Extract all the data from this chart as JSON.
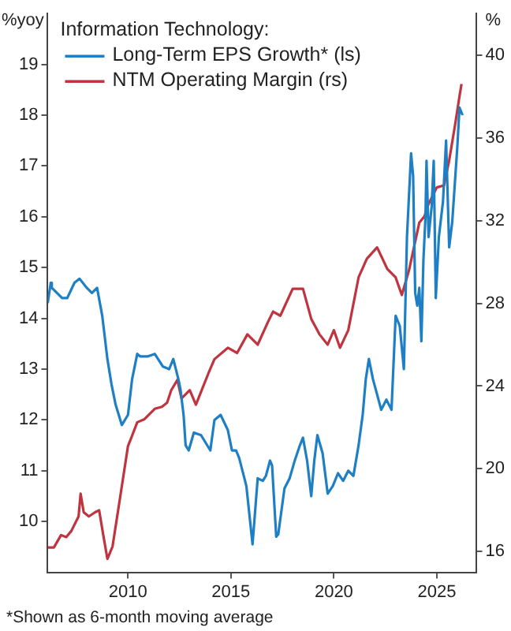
{
  "chart_data": {
    "type": "line",
    "legend_title": "Information Technology:",
    "ylabel": "%yoy",
    "y2label": "%",
    "xlim": [
      2006.1,
      2026.9
    ],
    "xticks": [
      2010,
      2015,
      2020,
      2025
    ],
    "ylim": [
      9,
      20
    ],
    "yticks": [
      10,
      11,
      12,
      13,
      14,
      15,
      16,
      17,
      18,
      19
    ],
    "y2lim": [
      15,
      42
    ],
    "y2ticks": [
      16,
      20,
      24,
      28,
      32,
      36,
      40
    ],
    "grid": false,
    "legend": "top left",
    "marker": "none",
    "line_style": "solid",
    "annotations": [
      "*Shown as 6-month moving average"
    ],
    "series": [
      {
        "name": "Long-Term EPS Growth* (ls)",
        "color": "#1f7fc4",
        "x": [
          2006.1,
          2006.25,
          2006.3,
          2006.55,
          2006.8,
          2007.05,
          2007.4,
          2007.65,
          2008.0,
          2008.25,
          2008.5,
          2008.75,
          2009.0,
          2009.2,
          2009.4,
          2009.7,
          2010.0,
          2010.2,
          2010.45,
          2010.6,
          2010.95,
          2011.3,
          2011.7,
          2012.0,
          2012.2,
          2012.45,
          2012.55,
          2012.7,
          2012.8,
          2012.95,
          2013.2,
          2013.55,
          2014.0,
          2014.2,
          2014.5,
          2014.85,
          2015.05,
          2015.25,
          2015.4,
          2015.75,
          2016.05,
          2016.3,
          2016.55,
          2016.7,
          2016.9,
          2017.0,
          2017.2,
          2017.3,
          2017.6,
          2017.85,
          2018.1,
          2018.35,
          2018.5,
          2018.7,
          2018.9,
          2019.05,
          2019.2,
          2019.45,
          2019.7,
          2019.95,
          2020.2,
          2020.45,
          2020.7,
          2020.95,
          2021.2,
          2021.4,
          2021.55,
          2021.7,
          2021.9,
          2022.1,
          2022.3,
          2022.55,
          2022.8,
          2023.0,
          2023.2,
          2023.4,
          2023.55,
          2023.75,
          2023.85,
          2023.95,
          2024.05,
          2024.15,
          2024.25,
          2024.35,
          2024.45,
          2024.5,
          2024.6,
          2024.75,
          2024.85,
          2024.95,
          2025.1,
          2025.3,
          2025.45,
          2025.6,
          2025.75,
          2025.85,
          2026.0,
          2026.1,
          2026.25
        ],
        "values": [
          14.3,
          14.7,
          14.6,
          14.5,
          14.4,
          14.4,
          14.7,
          14.78,
          14.6,
          14.5,
          14.6,
          14.05,
          13.2,
          12.7,
          12.3,
          11.9,
          12.1,
          12.8,
          13.3,
          13.25,
          13.25,
          13.3,
          13.05,
          13.0,
          13.2,
          12.8,
          12.6,
          12.1,
          11.5,
          11.4,
          11.75,
          11.7,
          11.4,
          12.0,
          12.1,
          11.8,
          11.4,
          11.4,
          11.25,
          10.7,
          9.55,
          10.85,
          10.8,
          10.9,
          11.2,
          11.1,
          9.7,
          9.75,
          10.65,
          10.85,
          11.2,
          11.5,
          11.65,
          11.2,
          10.5,
          11.2,
          11.7,
          11.35,
          10.55,
          10.7,
          10.95,
          10.8,
          11.0,
          10.9,
          11.5,
          12.1,
          12.8,
          13.2,
          12.8,
          12.5,
          12.2,
          12.4,
          12.2,
          14.05,
          13.85,
          13.0,
          15.6,
          17.25,
          16.8,
          14.5,
          14.25,
          14.6,
          13.55,
          15.15,
          16.0,
          17.1,
          15.6,
          16.2,
          17.1,
          14.4,
          15.6,
          16.3,
          17.5,
          15.4,
          15.9,
          16.5,
          17.4,
          18.15,
          18.0
        ]
      },
      {
        "name": "NTM Operating Margin (rs)",
        "color": "#c0343f",
        "axis": "y2",
        "x": [
          2006.1,
          2006.4,
          2006.75,
          2007.0,
          2007.25,
          2007.6,
          2007.7,
          2007.85,
          2008.1,
          2008.4,
          2008.6,
          2008.8,
          2009.0,
          2009.25,
          2009.6,
          2010.0,
          2010.2,
          2010.45,
          2010.8,
          2011.3,
          2011.65,
          2011.9,
          2012.1,
          2012.4,
          2012.6,
          2013.0,
          2013.3,
          2013.9,
          2014.2,
          2014.85,
          2015.3,
          2015.8,
          2016.3,
          2016.8,
          2017.05,
          2017.4,
          2018.0,
          2018.5,
          2018.9,
          2019.3,
          2019.7,
          2020.0,
          2020.3,
          2020.7,
          2021.2,
          2021.6,
          2022.1,
          2022.6,
          2023.0,
          2023.3,
          2023.65,
          2024.15,
          2024.4,
          2024.6,
          2025.0,
          2025.35,
          2025.6,
          2025.9,
          2026.1,
          2026.2
        ],
        "values": [
          16.2,
          16.2,
          16.8,
          16.7,
          17.0,
          17.7,
          18.8,
          17.9,
          17.7,
          17.9,
          18.0,
          16.8,
          15.65,
          16.25,
          18.5,
          21.1,
          21.6,
          22.25,
          22.4,
          22.9,
          23.0,
          23.2,
          23.8,
          24.3,
          23.4,
          23.8,
          23.1,
          24.6,
          25.3,
          25.85,
          25.6,
          26.5,
          26.0,
          27.1,
          27.6,
          27.4,
          28.7,
          28.7,
          27.25,
          26.5,
          26.0,
          26.7,
          25.85,
          26.7,
          29.25,
          30.15,
          30.7,
          29.65,
          29.25,
          28.4,
          29.6,
          31.9,
          32.2,
          32.8,
          33.6,
          33.7,
          34.9,
          36.7,
          38.0,
          38.6
        ]
      }
    ]
  }
}
